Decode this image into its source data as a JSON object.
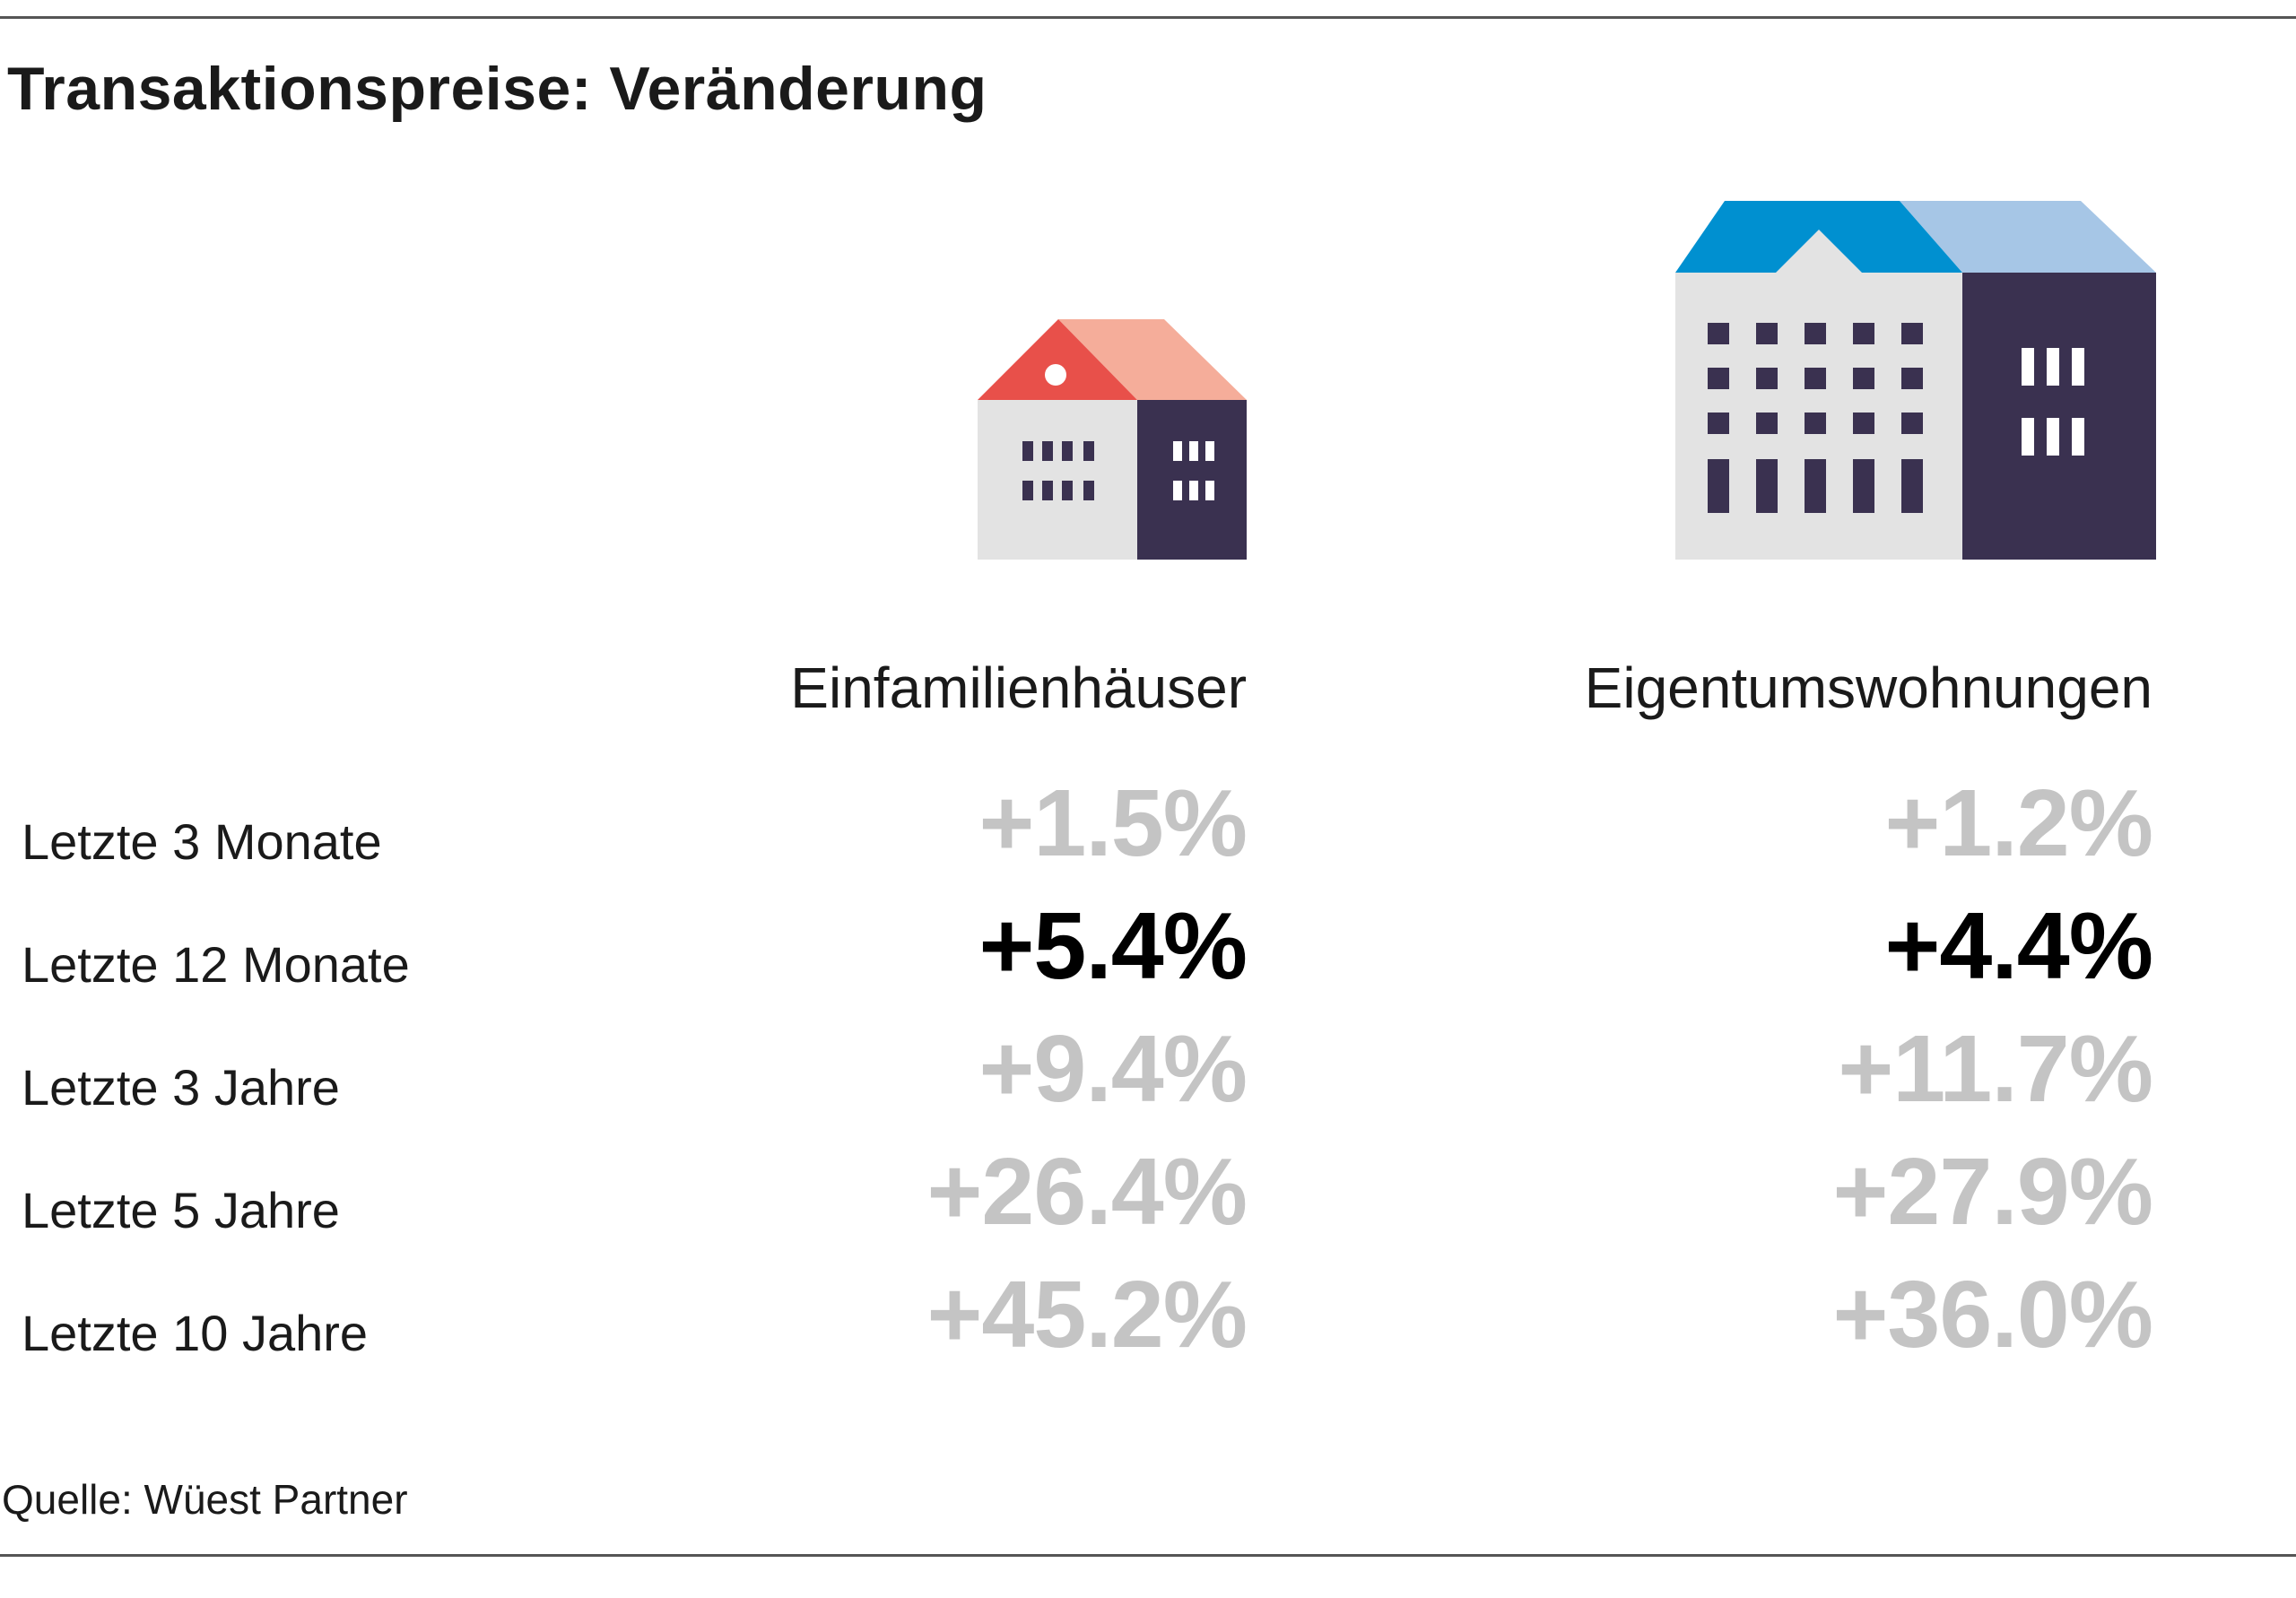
{
  "title": "Transaktionspreise: Veränderung",
  "source": "Quelle: Wüest Partner",
  "icons": {
    "house": "single-family-house-icon",
    "apartment": "apartment-building-icon"
  },
  "colors": {
    "highlight": "#000000",
    "muted": "#c4c4c4",
    "house_roof_left": "#e8504a",
    "house_roof_right": "#f5ad9a",
    "apartment_roof_left": "#0090d0",
    "apartment_roof_right": "#a6c6e6",
    "facade_light": "#e3e3e3",
    "facade_dark": "#3a3150"
  },
  "chart_data": {
    "type": "table",
    "title": "Transaktionspreise: Veränderung",
    "columns": [
      "Einfamilienhäuser",
      "Eigentumswohnungen"
    ],
    "rows": [
      {
        "label": "Letzte 3 Monate",
        "values": [
          "+1.5%",
          "+1.2%"
        ],
        "highlight": false
      },
      {
        "label": "Letzte 12 Monate",
        "values": [
          "+5.4%",
          "+4.4%"
        ],
        "highlight": true
      },
      {
        "label": "Letzte 3 Jahre",
        "values": [
          "+9.4%",
          "+11.7%"
        ],
        "highlight": false
      },
      {
        "label": "Letzte 5 Jahre",
        "values": [
          "+26.4%",
          "+27.9%"
        ],
        "highlight": false
      },
      {
        "label": "Letzte 10 Jahre",
        "values": [
          "+45.2%",
          "+36.0%"
        ],
        "highlight": false
      }
    ]
  }
}
